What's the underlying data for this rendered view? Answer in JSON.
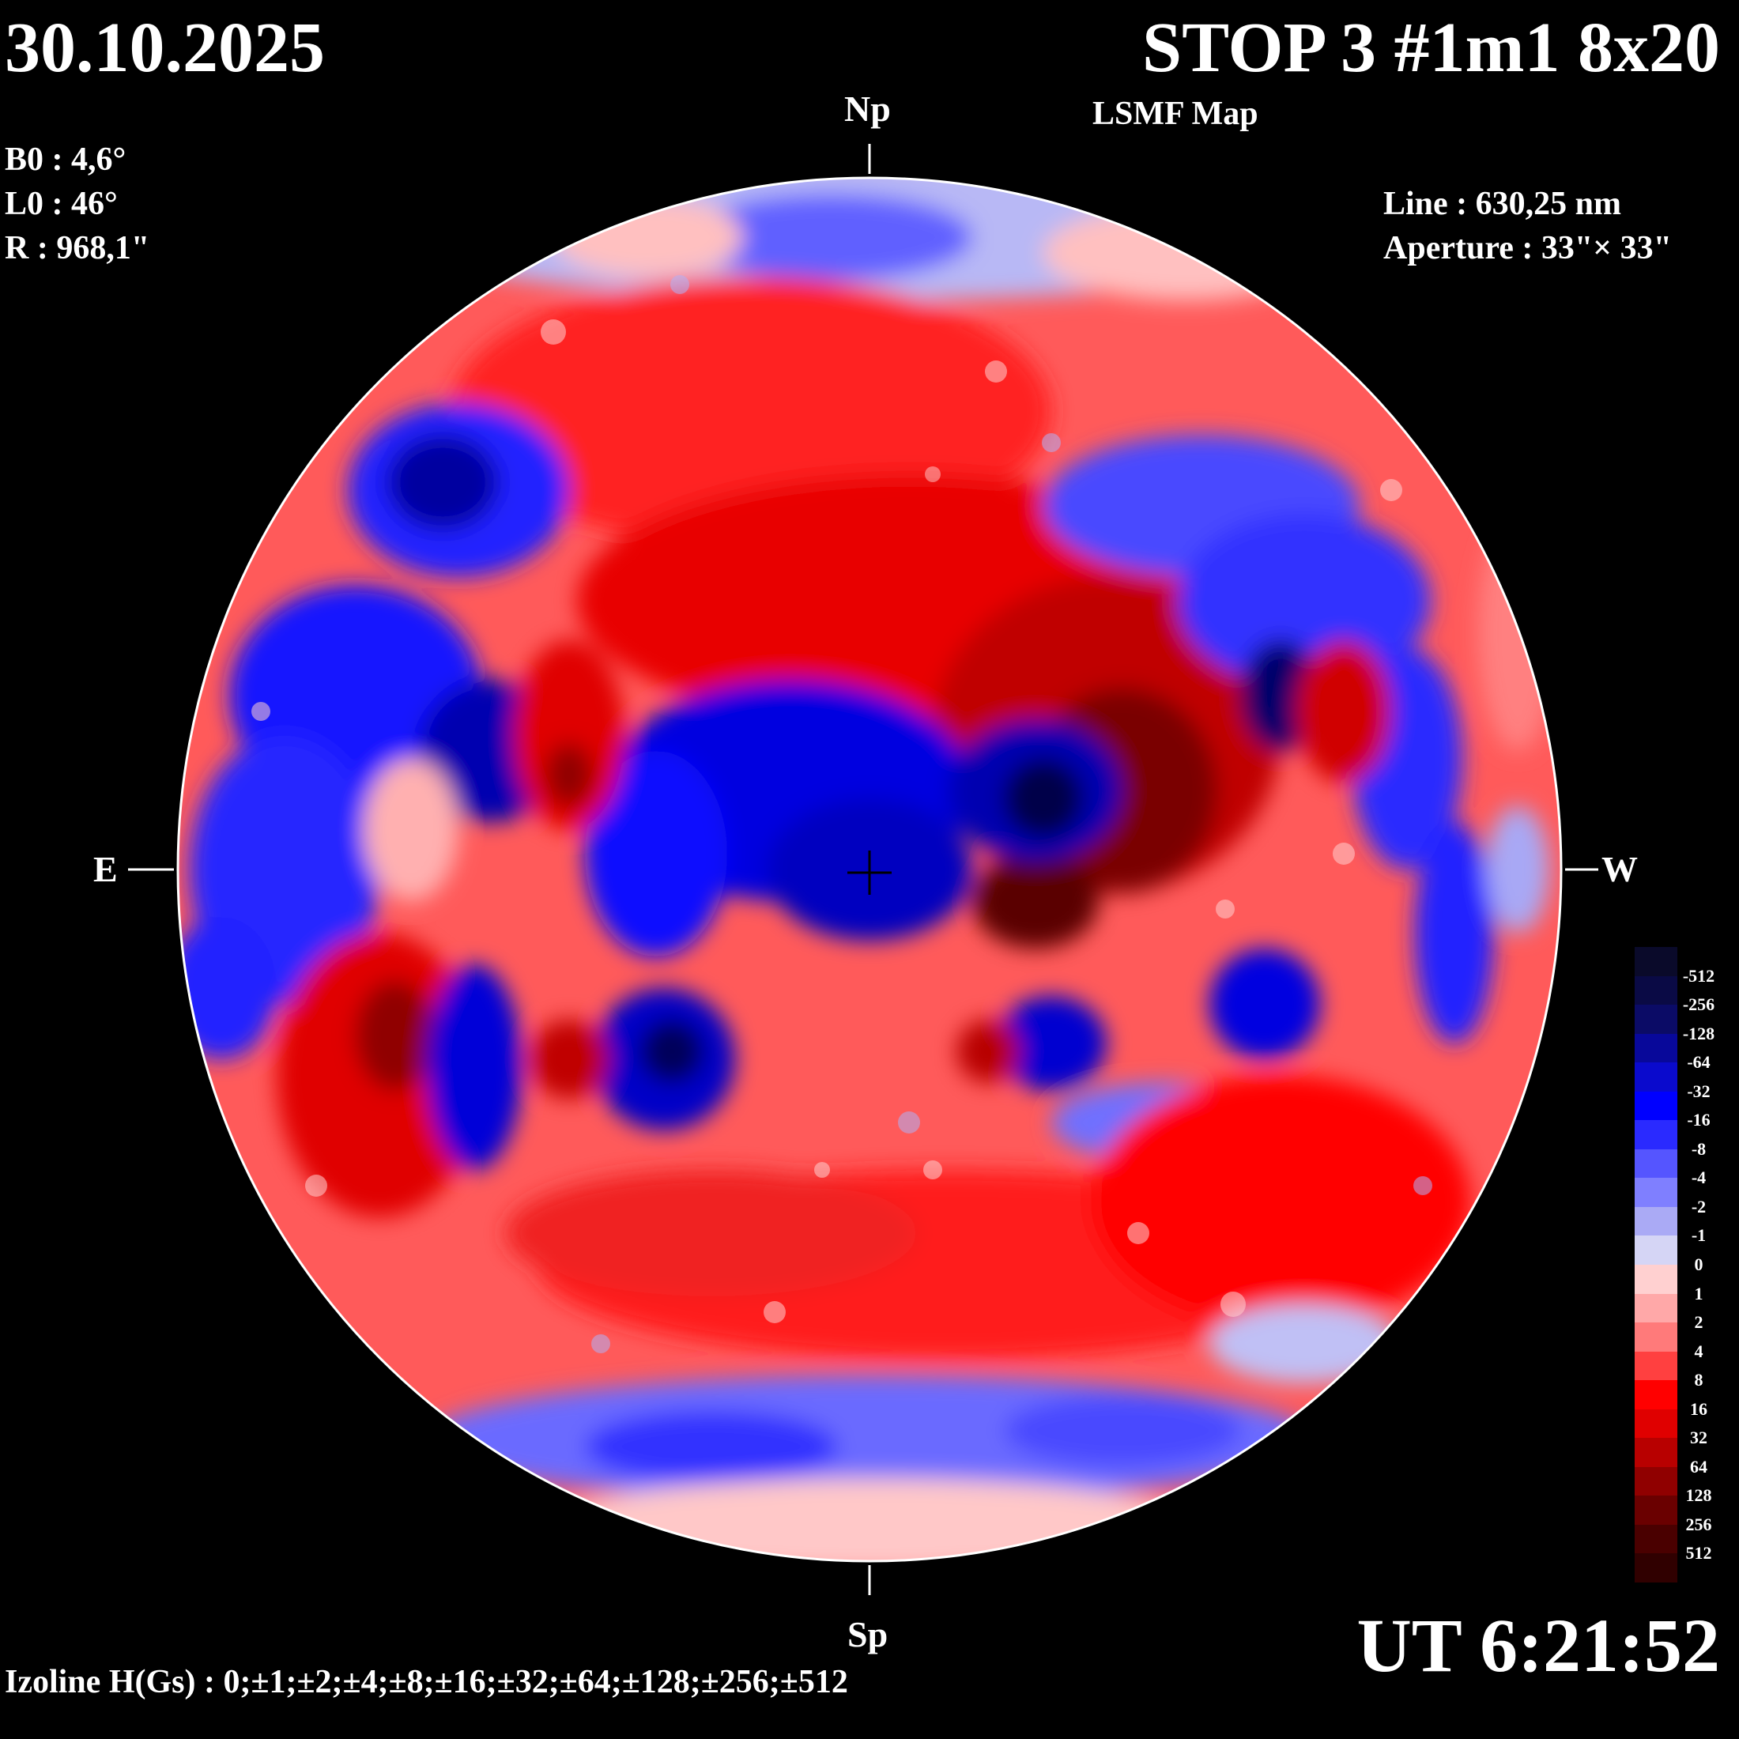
{
  "header": {
    "date": "30.10.2025",
    "title": "STOP 3 #1m1 8x20",
    "subtitle": "LSMF  Map"
  },
  "parameters": {
    "b0": "B0 : 4,6°",
    "l0": "L0 : 46°",
    "r": "R  : 968,1\""
  },
  "instrument": {
    "line": "Line :  630,25 nm",
    "aperture": "Aperture : 33\"× 33\""
  },
  "directions": {
    "north": "Np",
    "south": "Sp",
    "east": "E",
    "west": "W"
  },
  "time": "UT 6:21:52",
  "izoline": "Izoline H(Gs) : 0;±1;±2;±4;±8;±16;±32;±64;±128;±256;±512",
  "legend": {
    "levels": [
      "-512",
      "-256",
      "-128",
      "-64",
      "-32",
      "-16",
      "-8",
      "-4",
      "-2",
      "-1",
      "0",
      "1",
      "2",
      "4",
      "8",
      "16",
      "32",
      "64",
      "128",
      "256",
      "512"
    ],
    "colors": [
      "#0a0a2a",
      "#0a0a45",
      "#0b0b66",
      "#08089a",
      "#0a0acd",
      "#0000ff",
      "#2a2aff",
      "#5555ff",
      "#7f7fff",
      "#aaaaf5",
      "#d5d5f5",
      "#ffd0d0",
      "#ffa8a8",
      "#ff7a7a",
      "#ff4040",
      "#ff0000",
      "#e00000",
      "#b80000",
      "#900000",
      "#6a0000",
      "#4a0000",
      "#300000"
    ]
  },
  "map_colors": {
    "negative_strong": "#0000c8",
    "negative_mid": "#3a3aff",
    "negative_weak": "#a9a9f5",
    "positive_weak": "#ffb0b0",
    "positive_mid": "#ff2020",
    "positive_strong": "#a00000"
  }
}
